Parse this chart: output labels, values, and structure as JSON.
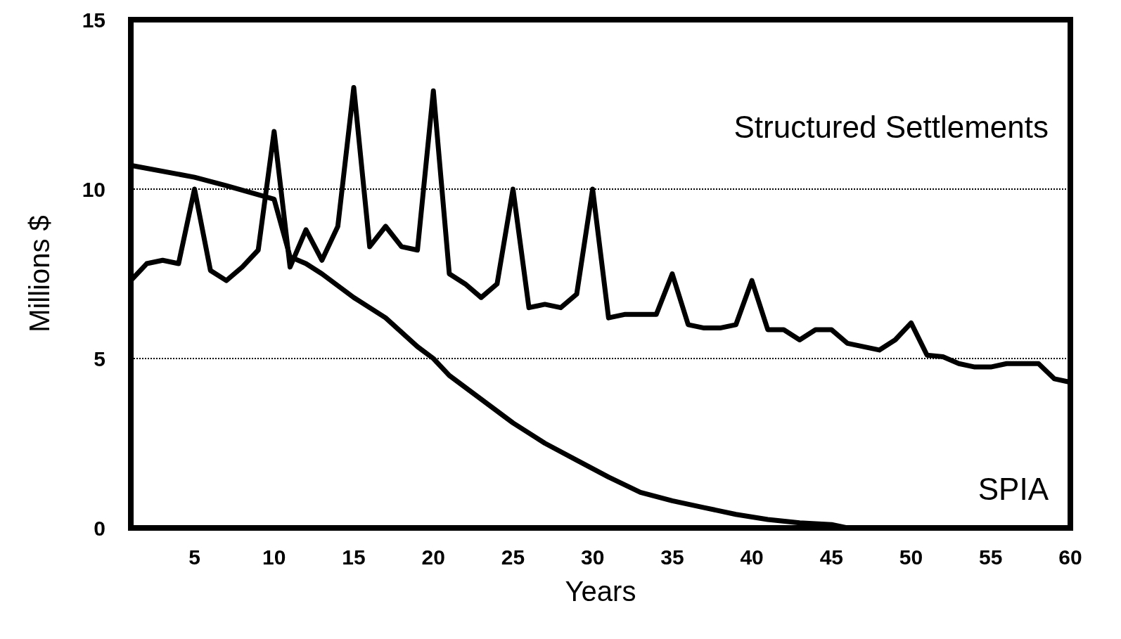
{
  "chart_data": {
    "type": "line",
    "xlabel": "Years",
    "ylabel": "Millions $",
    "xlim": [
      1,
      60
    ],
    "xticks": [
      5,
      10,
      15,
      20,
      25,
      30,
      35,
      40,
      45,
      50,
      55,
      60
    ],
    "ylim": [
      0,
      15
    ],
    "yticks": [
      0,
      5,
      10,
      15
    ],
    "grid": "y",
    "annotations": [
      "Structured Settlements",
      "SPIA"
    ],
    "marker": "none",
    "line_style": "solid",
    "x": [
      1,
      2,
      3,
      4,
      5,
      6,
      7,
      8,
      9,
      10,
      11,
      12,
      13,
      14,
      15,
      16,
      17,
      18,
      19,
      20,
      21,
      22,
      23,
      24,
      25,
      26,
      27,
      28,
      29,
      30,
      31,
      32,
      33,
      34,
      35,
      36,
      37,
      38,
      39,
      40,
      41,
      42,
      43,
      44,
      45,
      46,
      47,
      48,
      49,
      50,
      51,
      52,
      53,
      54,
      55,
      56,
      57,
      58,
      59,
      60
    ],
    "series": [
      {
        "color": "#000000",
        "values": [
          7.3,
          7.8,
          7.9,
          7.8,
          10.0,
          7.6,
          7.3,
          7.7,
          8.2,
          11.7,
          7.7,
          8.8,
          7.9,
          8.9,
          13.0,
          8.3,
          8.9,
          8.3,
          8.2,
          12.9,
          7.5,
          7.2,
          6.8,
          7.2,
          10.0,
          6.5,
          6.6,
          6.5,
          6.9,
          10.0,
          6.2,
          6.3,
          6.3,
          6.3,
          7.5,
          6.0,
          5.9,
          5.9,
          6.0,
          7.3,
          5.85,
          5.85,
          5.55,
          5.85,
          5.85,
          5.45,
          5.35,
          5.25,
          5.55,
          6.05,
          5.1,
          5.05,
          4.85,
          4.75,
          4.75,
          4.85,
          4.85,
          4.85,
          4.4,
          4.3
        ]
      },
      {
        "color": "#000000",
        "x": [
          1,
          5,
          7,
          10,
          11,
          12,
          13,
          15,
          17,
          19,
          20,
          21,
          23,
          25,
          27,
          29,
          31,
          33,
          35,
          37,
          39,
          41,
          43,
          45,
          46
        ],
        "values": [
          10.7,
          10.35,
          10.1,
          9.7,
          8.0,
          7.8,
          7.5,
          6.8,
          6.2,
          5.35,
          5.0,
          4.5,
          3.8,
          3.1,
          2.5,
          2.0,
          1.5,
          1.05,
          0.8,
          0.6,
          0.4,
          0.25,
          0.15,
          0.1,
          0
        ]
      }
    ]
  }
}
